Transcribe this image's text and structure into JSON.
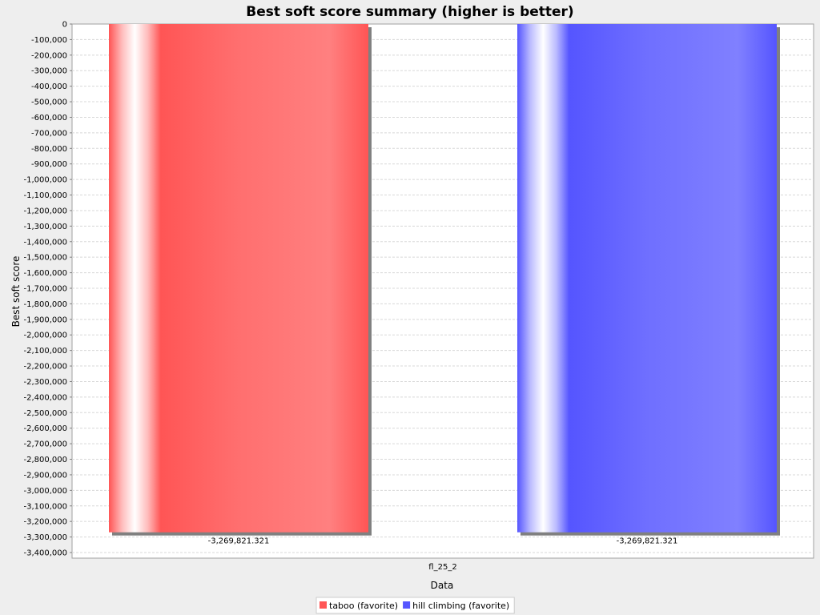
{
  "chart_data": {
    "type": "bar",
    "title": "Best soft score summary (higher is better)",
    "xlabel": "Data",
    "ylabel": "Best soft score",
    "categories": [
      "fl_25_2"
    ],
    "series": [
      {
        "name": "taboo (favorite)",
        "color": "#ff5555",
        "values": [
          -3269821.321
        ],
        "value_labels": [
          "-3,269,821.321"
        ]
      },
      {
        "name": "hill climbing (favorite)",
        "color": "#5555ff",
        "values": [
          -3269821.321
        ],
        "value_labels": [
          "-3,269,821.321"
        ]
      }
    ],
    "ylim": [
      -3400000,
      0
    ],
    "yticks": [
      0,
      -100000,
      -200000,
      -300000,
      -400000,
      -500000,
      -600000,
      -700000,
      -800000,
      -900000,
      -1000000,
      -1100000,
      -1200000,
      -1300000,
      -1400000,
      -1500000,
      -1600000,
      -1700000,
      -1800000,
      -1900000,
      -2000000,
      -2100000,
      -2200000,
      -2300000,
      -2400000,
      -2500000,
      -2600000,
      -2700000,
      -2800000,
      -2900000,
      -3000000,
      -3100000,
      -3200000,
      -3300000,
      -3400000
    ],
    "ytick_labels": [
      "0",
      "-100,000",
      "-200,000",
      "-300,000",
      "-400,000",
      "-500,000",
      "-600,000",
      "-700,000",
      "-800,000",
      "-900,000",
      "-1,000,000",
      "-1,100,000",
      "-1,200,000",
      "-1,300,000",
      "-1,400,000",
      "-1,500,000",
      "-1,600,000",
      "-1,700,000",
      "-1,800,000",
      "-1,900,000",
      "-2,000,000",
      "-2,100,000",
      "-2,200,000",
      "-2,300,000",
      "-2,400,000",
      "-2,500,000",
      "-2,600,000",
      "-2,700,000",
      "-2,800,000",
      "-2,900,000",
      "-3,000,000",
      "-3,100,000",
      "-3,200,000",
      "-3,300,000",
      "-3,400,000"
    ],
    "grid": true,
    "legend_position": "bottom"
  }
}
